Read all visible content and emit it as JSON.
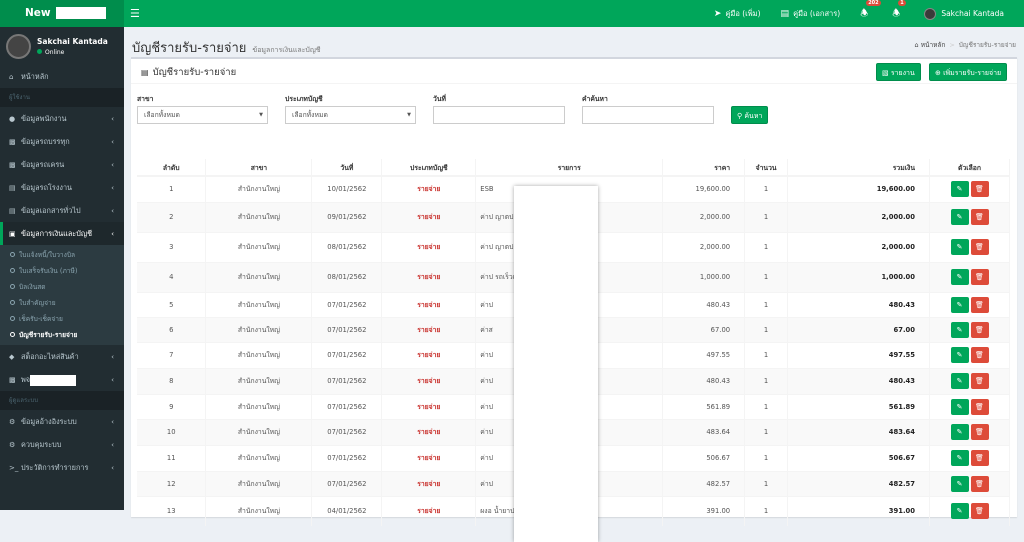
{
  "brand": {
    "name": "New"
  },
  "topnav": {
    "manual_add": "คู่มือ (เพิ่ม)",
    "manual_doc": "คู่มือ (เอกสาร)",
    "notif1": "202",
    "notif2": "1",
    "user": "Sakchai Kantada"
  },
  "sidebar": {
    "user": "Sakchai Kantada",
    "status": "Online",
    "home": "หน้าหลัก",
    "hd1": "ผู้ใช้งาน",
    "items": [
      "ข้อมูลพนักงาน",
      "ข้อมูลรถบรรทุก",
      "ข้อมูลรถเครน",
      "ข้อมูลรถโรงงาน",
      "ข้อมูลเอกสารทั่วไป",
      "ข้อมูลการเงินและบัญชี"
    ],
    "sub": [
      "ใบแจ้งหนี้/ใบวางบิล",
      "ใบเสร็จรับเงิน (ภาษี)",
      "บิลเงินสด",
      "ใบสำคัญจ่าย",
      "เช็ครับ-เช็คจ่าย",
      "บัญชีรายรับ-รายจ่าย"
    ],
    "items2": [
      "สต็อกอะไหล่สินค้า",
      "พจ"
    ],
    "hd2": "ผู้ดูแลระบบ",
    "items3": [
      "ข้อมูลอ้างอิงระบบ",
      "ควบคุมระบบ",
      "ประวัติการทำรายการ"
    ]
  },
  "page": {
    "title": "บัญชีรายรับ-รายจ่าย",
    "subtitle": "ข้อมูลการเงินและบัญชี",
    "bc_home": "หน้าหลัก",
    "bc_current": "บัญชีรายรับ-รายจ่าย",
    "box_title": "บัญชีรายรับ-รายจ่าย",
    "report_btn": "รายงาน",
    "add_btn": "เพิ่มรายรับ-รายจ่าย"
  },
  "filters": {
    "branch_label": "สาขา",
    "branch_value": "เลือกทั้งหมด",
    "type_label": "ประเภทบัญชี",
    "type_value": "เลือกทั้งหมด",
    "date_label": "วันที่",
    "search_label": "คำค้นหา",
    "search_btn": "ค้นหา"
  },
  "table": {
    "headers": [
      "ลำดับ",
      "สาขา",
      "วันที่",
      "ประเภทบัญชี",
      "รายการ",
      "ราคา",
      "จำนวน",
      "รวมเงิน",
      "ตัวเลือก"
    ],
    "rows": [
      [
        "1",
        "สำนักงานใหญ่",
        "10/01/2562",
        "รายจ่าย",
        "ESB",
        "19,600.00",
        "1",
        "19,600.00"
      ],
      [
        "2",
        "สำนักงานใหญ่",
        "09/01/2562",
        "รายจ่าย",
        "ค่าป  ญาตประกอบการ ม.32 กะ(",
        "2,000.00",
        "1",
        "2,000.00"
      ],
      [
        "3",
        "สำนักงานใหญ่",
        "08/01/2562",
        "รายจ่าย",
        "ค่าป  ญาตประกอบการ ม.32 กะ(",
        "2,000.00",
        "1",
        "2,000.00"
      ],
      [
        "4",
        "สำนักงานใหญ่",
        "08/01/2562",
        "รายจ่าย",
        "ค่าป  รถเร็วเกินกำหนด GPS) กะ(",
        "1,000.00",
        "1",
        "1,000.00"
      ],
      [
        "5",
        "สำนักงานใหญ่",
        "07/01/2562",
        "รายจ่าย",
        "ค่าป",
        "480.43",
        "1",
        "480.43"
      ],
      [
        "6",
        "สำนักงานใหญ่",
        "07/01/2562",
        "รายจ่าย",
        "ค่าส",
        "67.00",
        "1",
        "67.00"
      ],
      [
        "7",
        "สำนักงานใหญ่",
        "07/01/2562",
        "รายจ่าย",
        "ค่าป",
        "497.55",
        "1",
        "497.55"
      ],
      [
        "8",
        "สำนักงานใหญ่",
        "07/01/2562",
        "รายจ่าย",
        "ค่าป",
        "480.43",
        "1",
        "480.43"
      ],
      [
        "9",
        "สำนักงานใหญ่",
        "07/01/2562",
        "รายจ่าย",
        "ค่าป",
        "561.89",
        "1",
        "561.89"
      ],
      [
        "10",
        "สำนักงานใหญ่",
        "07/01/2562",
        "รายจ่าย",
        "ค่าป",
        "483.64",
        "1",
        "483.64"
      ],
      [
        "11",
        "สำนักงานใหญ่",
        "07/01/2562",
        "รายจ่าย",
        "ค่าป",
        "506.67",
        "1",
        "506.67"
      ],
      [
        "12",
        "สำนักงานใหญ่",
        "07/01/2562",
        "รายจ่าย",
        "ค่าป",
        "482.57",
        "1",
        "482.57"
      ],
      [
        "13",
        "สำนักงานใหญ่",
        "04/01/2562",
        "รายจ่าย",
        "ผงอ  น้ำยาปรับผ้านุ่ม 95 , กระ",
        "391.00",
        "1",
        "391.00"
      ]
    ]
  }
}
